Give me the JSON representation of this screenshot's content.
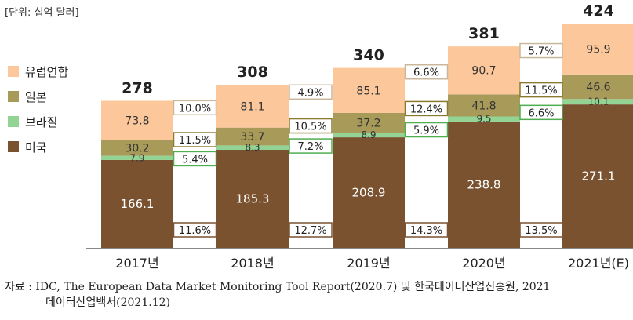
{
  "unit_label": "[단위: 십억 달러]",
  "source": {
    "line1": "자료 : IDC, The European Data Market Monitoring Tool Report(2020.7) 및 한국데이터산업진흥원, 2021",
    "line2": "데이터산업백서(2021.12)"
  },
  "colors": {
    "eu": "#fcc89b",
    "japan": "#a89b5a",
    "brazil": "#93d393",
    "usa": "#7a5230",
    "box_eu": "#c9b79c",
    "box_japan": "#8a7a2e",
    "box_brazil": "#4fae4f",
    "box_usa": "#7a5230"
  },
  "chart_data": {
    "type": "bar",
    "stacked": true,
    "categories": [
      "2017년",
      "2018년",
      "2019년",
      "2020년",
      "2021년(E)"
    ],
    "series": [
      {
        "name": "미국",
        "key": "usa",
        "values": [
          166.1,
          185.3,
          208.9,
          238.8,
          271.1
        ],
        "labels": [
          "166.1",
          "185.3",
          "208.9",
          "238.8",
          "271.1"
        ]
      },
      {
        "name": "브라질",
        "key": "brazil",
        "values": [
          7.9,
          8.3,
          8.9,
          9.5,
          10.1
        ],
        "labels": [
          "7.9",
          "8.3",
          "8.9",
          "9.5",
          "10.1"
        ]
      },
      {
        "name": "일본",
        "key": "japan",
        "values": [
          30.2,
          33.7,
          37.2,
          41.8,
          46.6
        ],
        "labels": [
          "30.2",
          "33.7",
          "37.2",
          "41.8",
          "46.6"
        ]
      },
      {
        "name": "유럽연합",
        "key": "eu",
        "values": [
          73.8,
          81.1,
          85.1,
          90.7,
          95.9
        ],
        "labels": [
          "73.8",
          "81.1",
          "85.1",
          "90.7",
          "95.9"
        ]
      }
    ],
    "totals": [
      "278",
      "308",
      "340",
      "381",
      "424"
    ],
    "growth_rates": [
      {
        "eu": "10.0%",
        "japan": "11.5%",
        "brazil": "5.4%",
        "usa": "11.6%"
      },
      {
        "eu": "4.9%",
        "japan": "10.5%",
        "brazil": "7.2%",
        "usa": "12.7%"
      },
      {
        "eu": "6.6%",
        "japan": "12.4%",
        "brazil": "5.9%",
        "usa": "14.3%"
      },
      {
        "eu": "5.7%",
        "japan": "11.5%",
        "brazil": "6.6%",
        "usa": "13.5%"
      }
    ],
    "legend_order": [
      "유럽연합",
      "일본",
      "브라질",
      "미국"
    ],
    "legend_keys": [
      "eu",
      "japan",
      "brazil",
      "usa"
    ],
    "ylim": [
      0,
      424
    ],
    "grid": false,
    "legend_position": "left"
  }
}
